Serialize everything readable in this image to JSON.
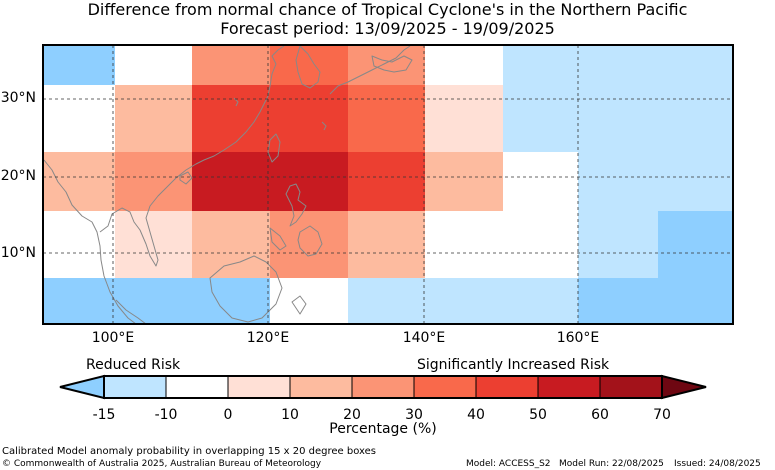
{
  "title": "Difference from normal chance of Tropical Cyclone's in the Northern Pacific",
  "subtitle": "Forecast period: 13/09/2025 - 19/09/2025",
  "map": {
    "lon_range": [
      91,
      180
    ],
    "lat_range": [
      1,
      37
    ],
    "lat_ticks": [
      "10°N",
      "20°N",
      "30°N"
    ],
    "lon_ticks": [
      "100°E",
      "120°E",
      "140°E",
      "160°E"
    ],
    "grid": "dashed",
    "coastline_color": "#888888"
  },
  "legend": {
    "left_label": "Reduced Risk",
    "right_label": "Significantly Increased Risk",
    "axis_label": "Percentage (%)",
    "tick_labels": [
      "-15",
      "-10",
      "0",
      "10",
      "20",
      "30",
      "40",
      "50",
      "60",
      "70"
    ],
    "colors": [
      "#8ecfff",
      "#bfe5ff",
      "#ffffff",
      "#ffe0d6",
      "#fdbb9f",
      "#fb9475",
      "#f9694b",
      "#ec3f31",
      "#c81b21",
      "#a3121a",
      "#6e0712"
    ]
  },
  "footer": {
    "caption": "Calibrated Model anomaly probability in overlapping 15 x 20 degree boxes",
    "copyright": "© Commonwealth of Australia 2025, Australian Bureau of Meteorology",
    "model": "Model: ACCESS_S2",
    "run": "Model Run: 22/08/2025",
    "issued": "Issued: 24/08/2025"
  }
}
